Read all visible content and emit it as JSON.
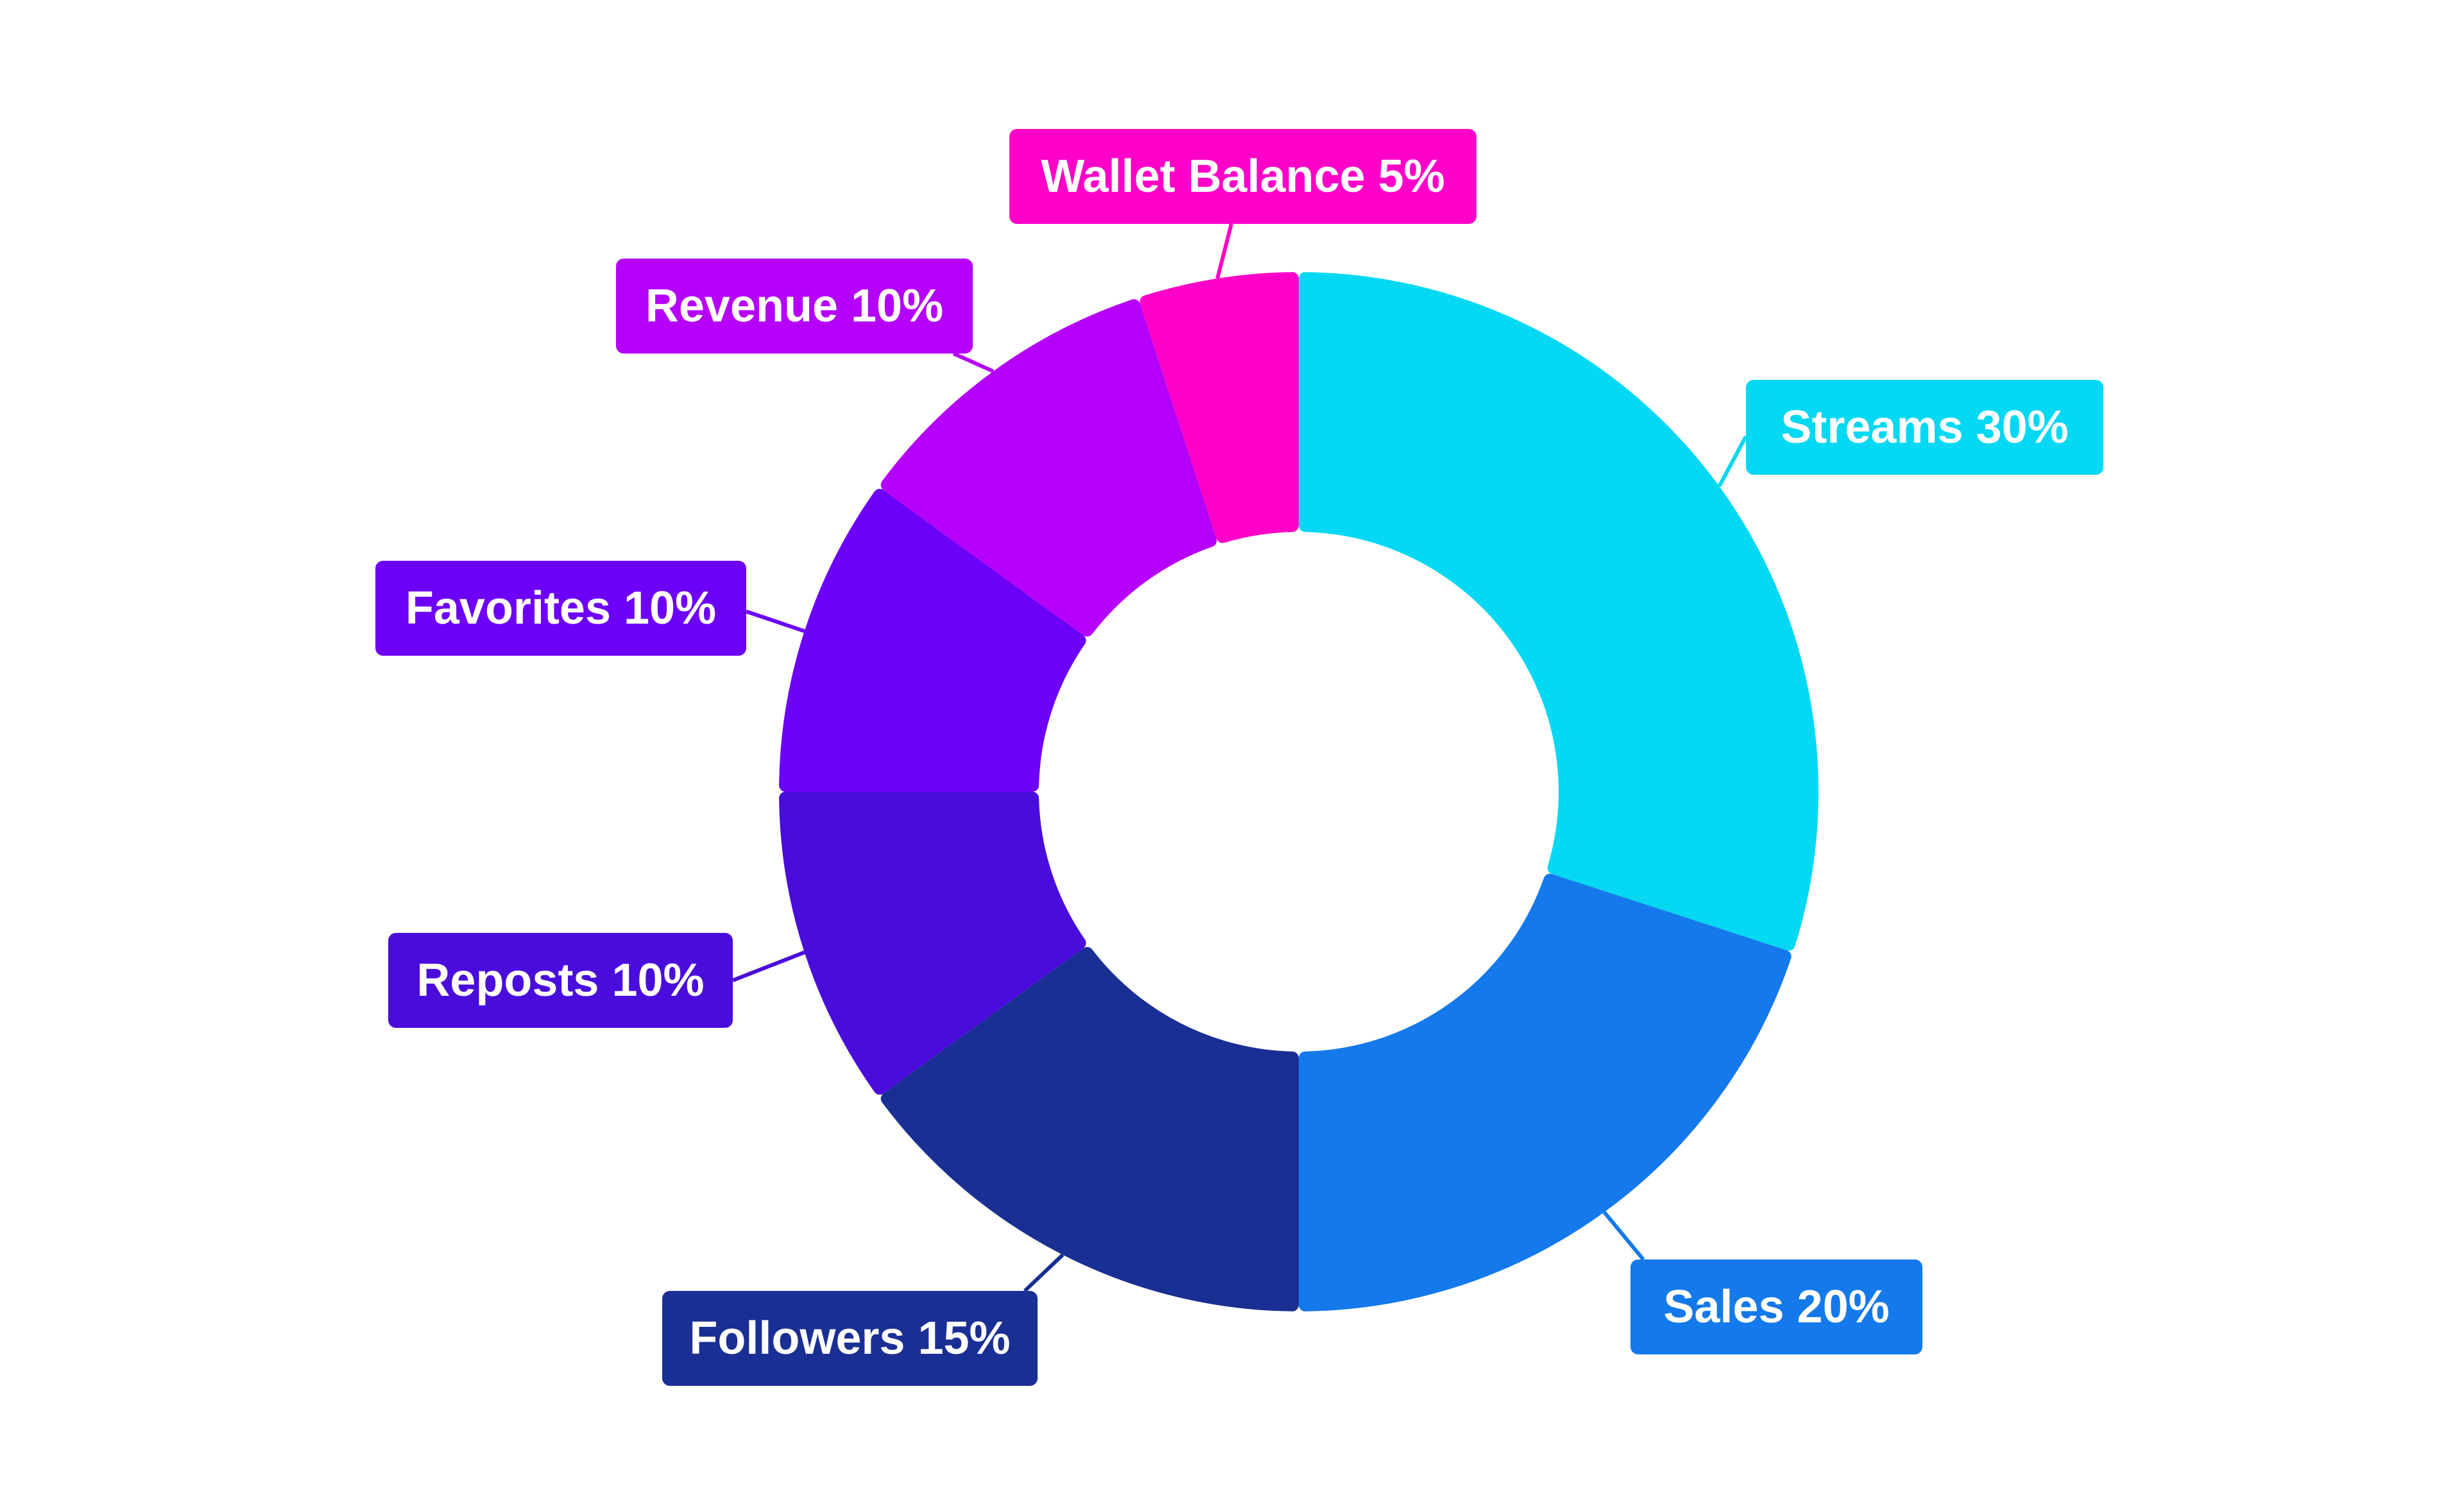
{
  "chart_data": {
    "type": "pie",
    "variant": "donut",
    "slices": [
      {
        "label": "Streams 30%",
        "value": 30,
        "color": "#04D8F2"
      },
      {
        "label": "Sales 20%",
        "value": 20,
        "color": "#1479EA"
      },
      {
        "label": "Followers 15%",
        "value": 15,
        "color": "#1A2F93"
      },
      {
        "label": "Reposts 10%",
        "value": 10,
        "color": "#4A0CDB"
      },
      {
        "label": "Favorites 10%",
        "value": 10,
        "color": "#6D01F7"
      },
      {
        "label": "Revenue 10%",
        "value": 10,
        "color": "#B501F9"
      },
      {
        "label": "Wallet Balance 5%",
        "value": 5,
        "color": "#FF00C8"
      }
    ]
  }
}
